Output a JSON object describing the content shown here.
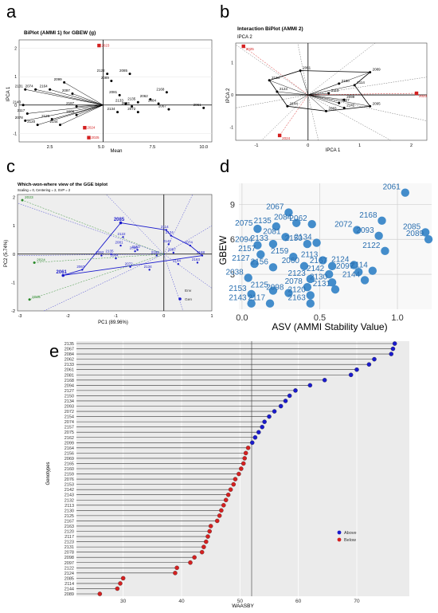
{
  "panel_letters": [
    "a",
    "b",
    "c",
    "d",
    "e"
  ],
  "chart_data": [
    {
      "panel": "a",
      "type": "scatter",
      "title": "BiPlot (AMMI 1) for GBEW (g)",
      "xlabel": "Mean",
      "ylabel": "IPCA 1",
      "xlim": [
        1,
        10.4
      ],
      "ylim": [
        -1.3,
        2.3
      ],
      "xticks": [
        "2.5",
        "5.0",
        "7.5",
        "10.0"
      ],
      "yticks": [
        "-1",
        "0",
        "1",
        "2"
      ],
      "reference_lines": {
        "x": 5.1,
        "y": 0
      },
      "points": [
        {
          "label": "2061",
          "x": 10.0,
          "y": -0.1
        },
        {
          "label": "2067",
          "x": 8.3,
          "y": -0.15
        },
        {
          "label": "2084",
          "x": 7.8,
          "y": 0.05
        },
        {
          "label": "2062",
          "x": 7.4,
          "y": 0.2
        },
        {
          "label": "2168",
          "x": 8.2,
          "y": 0.45
        },
        {
          "label": "2133",
          "x": 6.2,
          "y": 0.05
        },
        {
          "label": "2135",
          "x": 6.8,
          "y": 0.1
        },
        {
          "label": "2093",
          "x": 6.5,
          "y": -0.05
        },
        {
          "label": "2134",
          "x": 5.8,
          "y": -0.25
        },
        {
          "label": "2072",
          "x": 6.8,
          "y": -0.25
        },
        {
          "label": "2081",
          "x": 5.9,
          "y": 0.35
        },
        {
          "label": "2085",
          "x": 6.4,
          "y": 1.1
        },
        {
          "label": "2122",
          "x": 5.3,
          "y": 1.1
        },
        {
          "label": "2089",
          "x": 5.5,
          "y": 0.85
        },
        {
          "label": "2099",
          "x": 3.2,
          "y": 0.8
        },
        {
          "label": "2131",
          "x": 1.3,
          "y": 0.55
        },
        {
          "label": "2074",
          "x": 1.8,
          "y": 0.55
        },
        {
          "label": "2164",
          "x": 2.5,
          "y": 0.55
        },
        {
          "label": "2097",
          "x": 3.6,
          "y": 0.4
        },
        {
          "label": "2123",
          "x": 2.6,
          "y": -0.5
        },
        {
          "label": "2144",
          "x": 3.0,
          "y": -0.7
        },
        {
          "label": "2120",
          "x": 1.9,
          "y": -0.7
        },
        {
          "label": "2078",
          "x": 1.3,
          "y": -0.55
        },
        {
          "label": "2117",
          "x": 1.4,
          "y": -0.3
        },
        {
          "label": "2143",
          "x": 1.2,
          "y": 0.0
        },
        {
          "label": "2187",
          "x": 3.8,
          "y": -0.05
        },
        {
          "label": "2068",
          "x": 3.8,
          "y": -0.35
        }
      ],
      "environments": [
        {
          "label": "2023",
          "x": 4.9,
          "y": 2.1
        },
        {
          "label": "2024",
          "x": 4.2,
          "y": -0.8
        },
        {
          "label": "2025",
          "x": 4.4,
          "y": -1.15
        }
      ]
    },
    {
      "panel": "b",
      "type": "scatter",
      "title": "Interaction BiPlot (AMMI 2)",
      "subtitle": "IPCA 2",
      "xlabel": "IPCA 1",
      "ylabel": "IPCA 2",
      "xlim": [
        -1.4,
        2.3
      ],
      "ylim": [
        -1.4,
        1.6
      ],
      "xticks": [
        "-1",
        "0",
        "1",
        "2"
      ],
      "yticks": [
        "-1",
        "0",
        "1"
      ],
      "reference_lines": {
        "x": 0,
        "y": 0
      },
      "points": [
        {
          "label": "2061",
          "x": -0.15,
          "y": 0.75
        },
        {
          "label": "2089",
          "x": 1.2,
          "y": 0.7
        },
        {
          "label": "2114",
          "x": 0.9,
          "y": 0.3
        },
        {
          "label": "2095",
          "x": 1.2,
          "y": -0.35
        },
        {
          "label": "2134",
          "x": -0.75,
          "y": 0.45
        },
        {
          "label": "2123",
          "x": -0.6,
          "y": 0.1
        },
        {
          "label": "2144",
          "x": -0.4,
          "y": -0.35
        },
        {
          "label": "2083",
          "x": 0.35,
          "y": -0.5
        },
        {
          "label": "2113",
          "x": 0.4,
          "y": 0.05
        },
        {
          "label": "2127",
          "x": 0.6,
          "y": -0.25
        },
        {
          "label": "2142",
          "x": 0.7,
          "y": -0.4
        },
        {
          "label": "2100",
          "x": 0.6,
          "y": 0.35
        },
        {
          "label": "2099",
          "x": 0.7,
          "y": -0.15
        }
      ],
      "environments": [
        {
          "label": "2025",
          "x": -1.25,
          "y": 1.5
        },
        {
          "label": "2023",
          "x": 2.1,
          "y": 0.05
        },
        {
          "label": "2024",
          "x": -0.55,
          "y": -1.25
        }
      ]
    },
    {
      "panel": "c",
      "type": "scatter",
      "title": "Which-won-where view of the GGE biplot",
      "subtitle": "Scaling = 0, Centering = 2, SVP = 2",
      "xlabel": "PC1 (89.96%)",
      "ylabel": "PC2 (5.74%)",
      "xlim": [
        -3.05,
        1.0
      ],
      "ylim": [
        -2.0,
        2.1
      ],
      "xticks": [
        "-3",
        "-2",
        "-1",
        "0",
        "1"
      ],
      "yticks": [
        "-2",
        "-1",
        "0",
        "1",
        "2"
      ],
      "legend": [
        "Env",
        "Gen"
      ],
      "legend_position": "bottom-right",
      "colors": {
        "gen": "#1a1acc",
        "env": "#2a8a2a",
        "background": "#eeeeee"
      },
      "polygon": [
        "2085",
        "2114",
        "2124",
        "2074",
        "2168",
        "2061",
        "2067"
      ],
      "points": [
        {
          "label": "2085",
          "x": -0.9,
          "y": 1.1
        },
        {
          "label": "2061",
          "x": -2.1,
          "y": -0.75
        },
        {
          "label": "2122",
          "x": -0.85,
          "y": 0.6
        },
        {
          "label": "2114",
          "x": 0.05,
          "y": 0.85
        },
        {
          "label": "2124",
          "x": 0.15,
          "y": 0.65
        },
        {
          "label": "2074",
          "x": 0.55,
          "y": 0.3
        },
        {
          "label": "2081",
          "x": -0.9,
          "y": 0.3
        },
        {
          "label": "2099",
          "x": -0.6,
          "y": 0.1
        },
        {
          "label": "2135",
          "x": -1.1,
          "y": 0.0
        },
        {
          "label": "2062",
          "x": -1.3,
          "y": -0.05
        },
        {
          "label": "2084",
          "x": -1.0,
          "y": -0.15
        },
        {
          "label": "2072",
          "x": -0.7,
          "y": -0.45
        },
        {
          "label": "2134",
          "x": -0.3,
          "y": -0.55
        },
        {
          "label": "2150",
          "x": -0.15,
          "y": -0.05
        },
        {
          "label": "2142",
          "x": 0.1,
          "y": 0.35
        },
        {
          "label": "2097",
          "x": 0.2,
          "y": 0.05
        },
        {
          "label": "2168",
          "x": 0.8,
          "y": -0.05
        },
        {
          "label": "2163",
          "x": 0.7,
          "y": -0.3
        },
        {
          "label": "2067",
          "x": -1.7,
          "y": -0.55
        },
        {
          "label": "2144",
          "x": 0.3,
          "y": -0.35
        },
        {
          "label": "2153",
          "x": -0.55,
          "y": 0.15
        }
      ],
      "environments": [
        {
          "label": "2023",
          "x": -2.95,
          "y": 1.9
        },
        {
          "label": "2024",
          "x": -2.7,
          "y": -0.3
        },
        {
          "label": "2025",
          "x": -2.8,
          "y": -1.6
        }
      ]
    },
    {
      "panel": "d",
      "type": "scatter",
      "xlabel": "ASV (AMMI Stability Value)",
      "ylabel": "GBEW",
      "xlim": [
        -0.02,
        1.22
      ],
      "ylim": [
        0,
        10.8
      ],
      "xticks": [
        "0.0",
        "0.5",
        "1.0"
      ],
      "yticks": [
        "3",
        "6",
        "9"
      ],
      "colors": {
        "point": "#3a87c8",
        "label": "#2a6fb0"
      },
      "points": [
        {
          "label": "2061",
          "x": 1.05,
          "y": 10.0
        },
        {
          "label": "2085",
          "x": 1.18,
          "y": 6.6
        },
        {
          "label": "2089",
          "x": 1.2,
          "y": 6.0
        },
        {
          "label": "2168",
          "x": 0.9,
          "y": 7.6
        },
        {
          "label": "2093",
          "x": 0.88,
          "y": 6.3
        },
        {
          "label": "2122",
          "x": 0.92,
          "y": 5.0
        },
        {
          "label": "2072",
          "x": 0.74,
          "y": 6.8
        },
        {
          "label": "2067",
          "x": 0.3,
          "y": 8.3
        },
        {
          "label": "2062",
          "x": 0.45,
          "y": 7.3
        },
        {
          "label": "2084",
          "x": 0.35,
          "y": 7.4
        },
        {
          "label": "2135",
          "x": 0.22,
          "y": 7.1
        },
        {
          "label": "2075",
          "x": 0.1,
          "y": 6.9
        },
        {
          "label": "2081",
          "x": 0.28,
          "y": 6.2
        },
        {
          "label": "2134",
          "x": 0.48,
          "y": 5.7
        },
        {
          "label": "2150",
          "x": 0.42,
          "y": 5.6
        },
        {
          "label": "2133",
          "x": 0.2,
          "y": 5.6
        },
        {
          "label": "2094",
          "x": 0.1,
          "y": 5.5
        },
        {
          "label": "2157",
          "x": 0.12,
          "y": 4.7
        },
        {
          "label": "2159",
          "x": 0.33,
          "y": 4.5
        },
        {
          "label": "2113",
          "x": 0.52,
          "y": 4.2
        },
        {
          "label": "2127",
          "x": 0.08,
          "y": 3.9
        },
        {
          "label": "2124",
          "x": 0.72,
          "y": 3.8
        },
        {
          "label": "2156",
          "x": 0.2,
          "y": 3.6
        },
        {
          "label": "2060",
          "x": 0.4,
          "y": 3.7
        },
        {
          "label": "2167",
          "x": 0.58,
          "y": 3.7
        },
        {
          "label": "2114",
          "x": 0.84,
          "y": 3.3
        },
        {
          "label": "2097",
          "x": 0.75,
          "y": 3.2
        },
        {
          "label": "2142",
          "x": 0.56,
          "y": 3.0
        },
        {
          "label": "2144",
          "x": 0.79,
          "y": 2.5
        },
        {
          "label": "2123",
          "x": 0.44,
          "y": 2.6
        },
        {
          "label": "2130",
          "x": 0.58,
          "y": 2.3
        },
        {
          "label": "2078",
          "x": 0.42,
          "y": 1.9
        },
        {
          "label": "2131",
          "x": 0.6,
          "y": 1.7
        },
        {
          "label": "2125",
          "x": 0.2,
          "y": 1.6
        },
        {
          "label": "2098",
          "x": 0.3,
          "y": 1.4
        },
        {
          "label": "2120",
          "x": 0.44,
          "y": 1.2
        },
        {
          "label": "2153",
          "x": 0.06,
          "y": 1.3
        },
        {
          "label": "2143",
          "x": 0.06,
          "y": 0.5
        },
        {
          "label": "2117",
          "x": 0.18,
          "y": 0.5
        },
        {
          "label": "2163",
          "x": 0.44,
          "y": 0.5
        },
        {
          "label": "2038",
          "x": 0.04,
          "y": 2.7
        }
      ]
    },
    {
      "panel": "e",
      "type": "lollipop",
      "xlabel": "WAASBY",
      "ylabel": "Genotypes",
      "xlim": [
        22,
        79
      ],
      "xticks": [
        "30",
        "40",
        "50",
        "60",
        "70"
      ],
      "reference_line": 52,
      "legend": [
        "Above",
        "Below"
      ],
      "legend_position": "bottom-right",
      "colors": {
        "above": "#1a1acc",
        "below": "#d42020",
        "background": "#ebebeb"
      },
      "categories": [
        "2135",
        "2067",
        "2084",
        "2062",
        "2133",
        "2061",
        "2081",
        "2168",
        "2094",
        "2127",
        "2150",
        "2134",
        "2093",
        "2072",
        "2154",
        "2074",
        "2157",
        "2075",
        "2162",
        "2099",
        "2164",
        "2156",
        "2069",
        "2165",
        "2160",
        "2159",
        "2076",
        "2153",
        "2142",
        "2143",
        "2132",
        "2113",
        "2130",
        "2125",
        "2167",
        "2163",
        "2120",
        "2117",
        "2123",
        "2131",
        "2078",
        "2098",
        "2097",
        "2122",
        "2124",
        "2085",
        "2114",
        "2144",
        "2089"
      ],
      "values": [
        76.5,
        76.2,
        75.9,
        73.0,
        72.1,
        70.0,
        69.0,
        64.5,
        62.0,
        59.5,
        58.5,
        57.8,
        57.0,
        55.9,
        55.0,
        54.2,
        53.8,
        53.2,
        52.6,
        52.1,
        51.4,
        51.0,
        50.8,
        50.6,
        50.2,
        49.8,
        49.2,
        48.9,
        48.4,
        48.0,
        47.6,
        47.2,
        46.8,
        46.5,
        46.1,
        45.0,
        44.8,
        44.5,
        44.2,
        43.8,
        43.5,
        42.2,
        41.5,
        39.2,
        38.9,
        30.0,
        29.5,
        29.0,
        26.0
      ],
      "groups": [
        "Above",
        "Above",
        "Above",
        "Above",
        "Above",
        "Above",
        "Above",
        "Above",
        "Above",
        "Above",
        "Above",
        "Above",
        "Above",
        "Above",
        "Above",
        "Above",
        "Above",
        "Above",
        "Above",
        "Above",
        "Below",
        "Below",
        "Below",
        "Below",
        "Below",
        "Below",
        "Below",
        "Below",
        "Below",
        "Below",
        "Below",
        "Below",
        "Below",
        "Below",
        "Below",
        "Below",
        "Below",
        "Below",
        "Below",
        "Below",
        "Below",
        "Below",
        "Below",
        "Below",
        "Below",
        "Below",
        "Below",
        "Below",
        "Below"
      ]
    }
  ]
}
